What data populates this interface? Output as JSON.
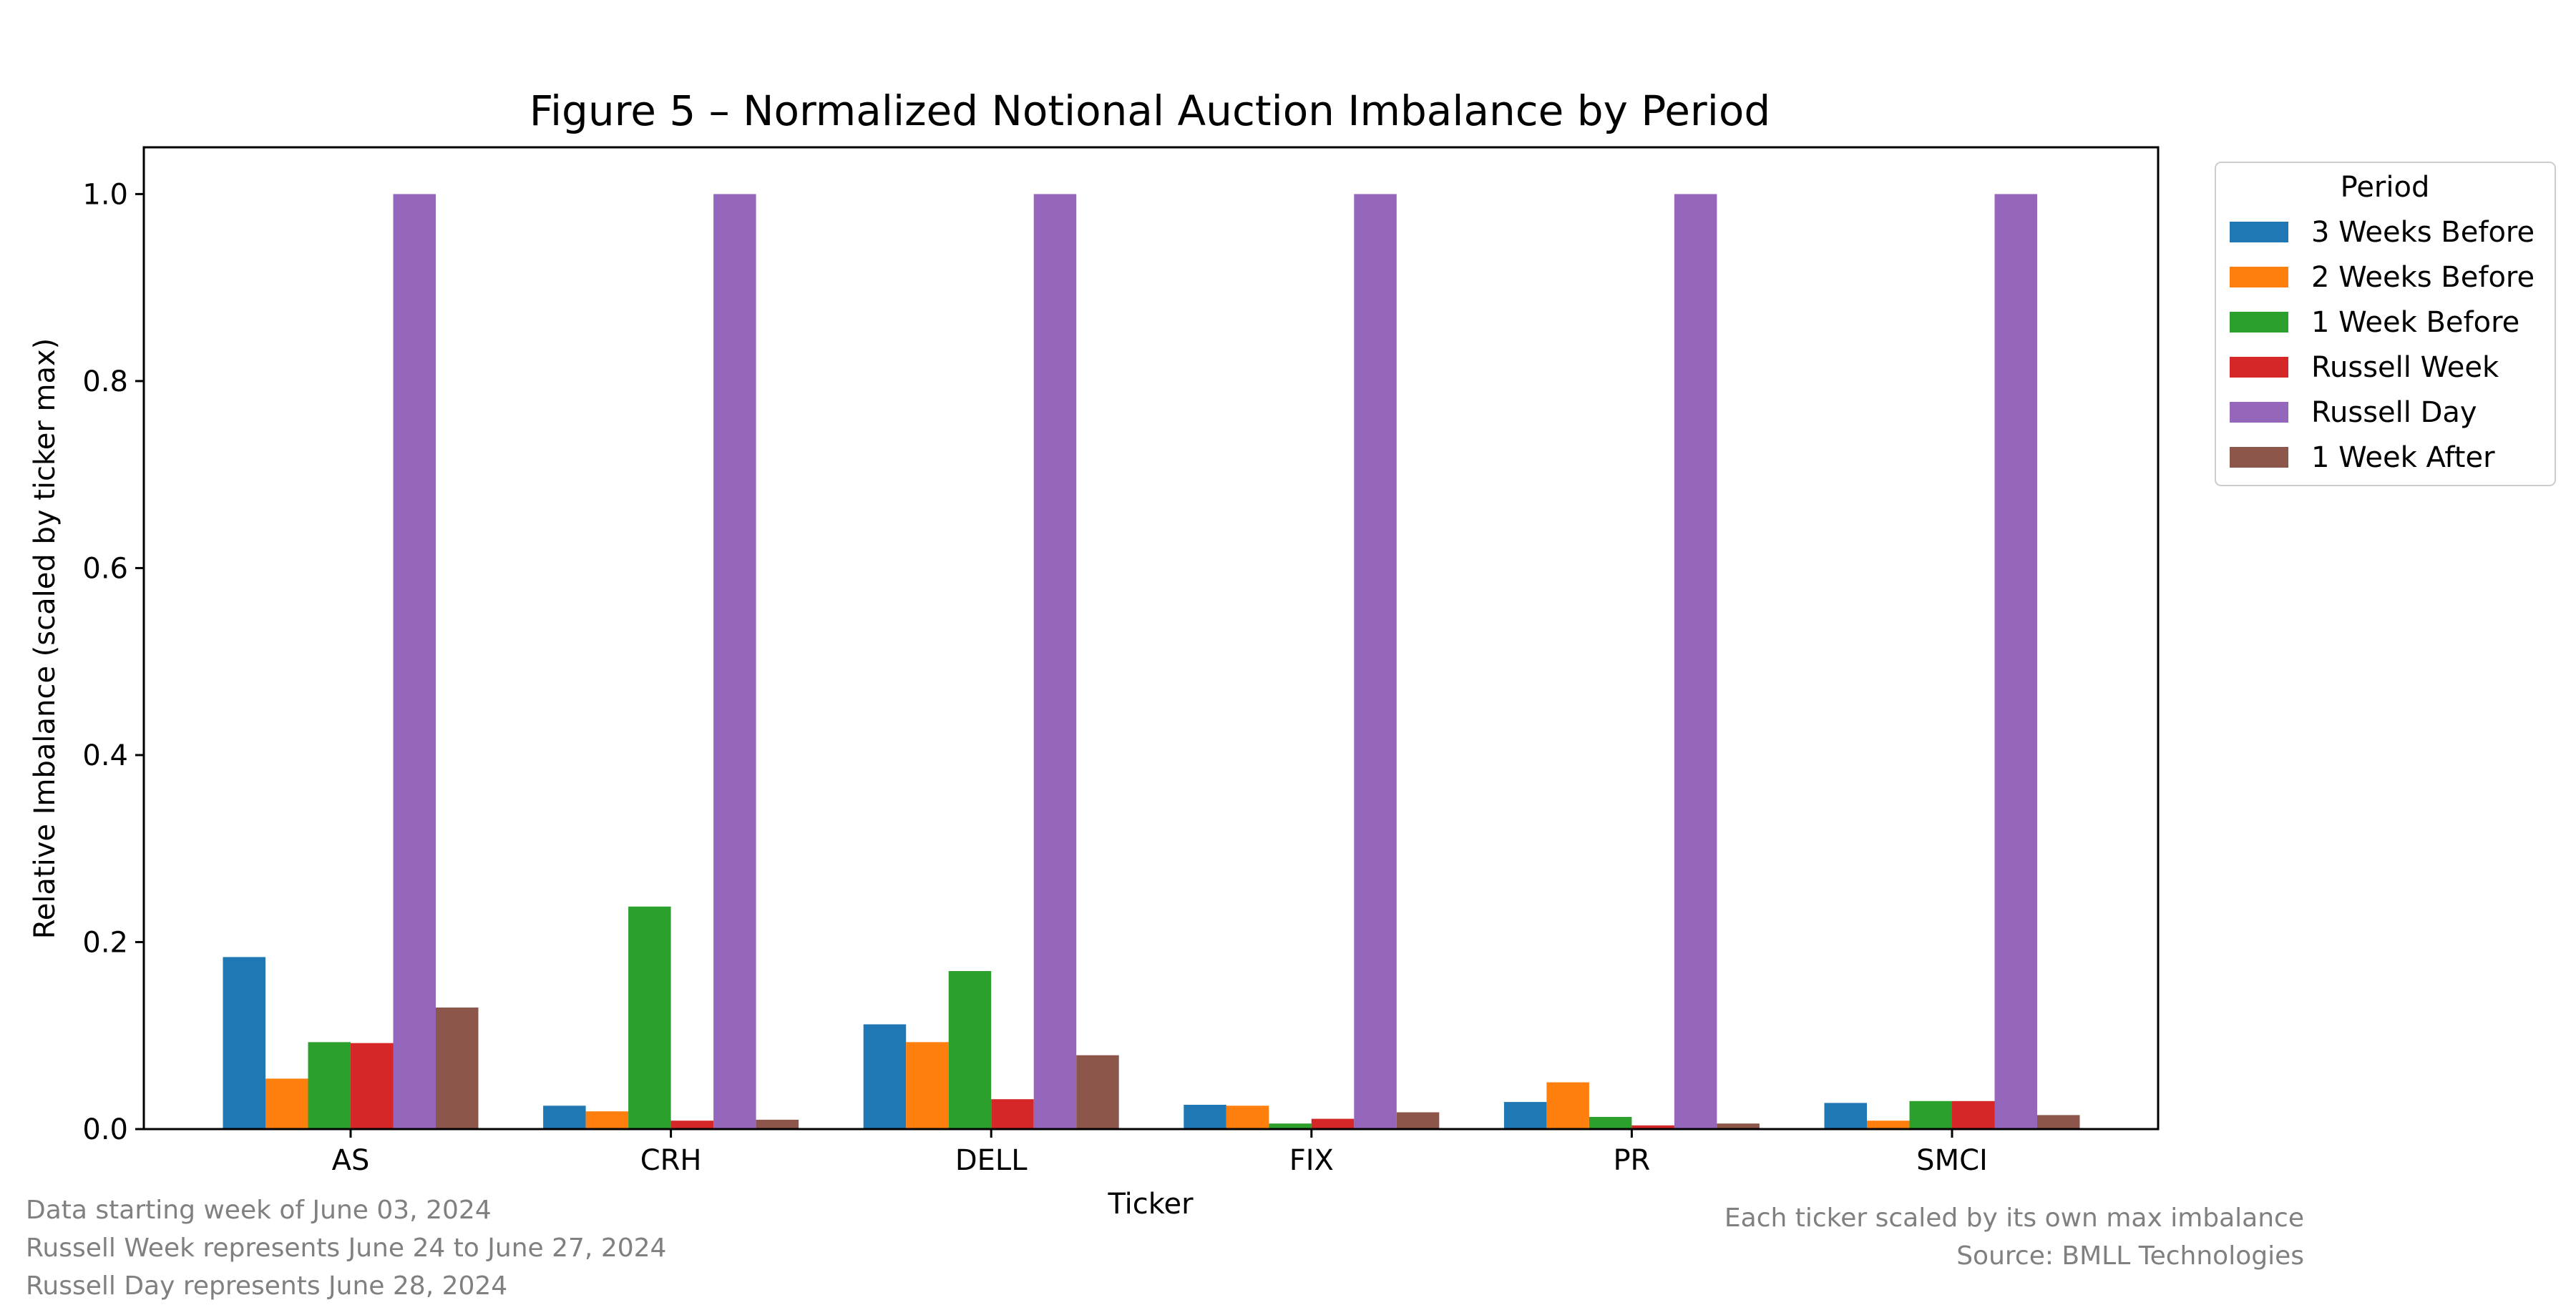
{
  "chart_data": {
    "type": "bar",
    "title": "Figure 5 – Normalized Notional Auction Imbalance by Period",
    "xlabel": "Ticker",
    "ylabel": "Relative Imbalance (scaled by ticker max)",
    "ylim": [
      0,
      1.05
    ],
    "yticks": [
      "0.0",
      "0.2",
      "0.4",
      "0.6",
      "0.8",
      "1.0"
    ],
    "grid": false,
    "categories": [
      "AS",
      "CRH",
      "DELL",
      "FIX",
      "PR",
      "SMCI"
    ],
    "legend": {
      "title": "Period",
      "placement": "outside-top-right"
    },
    "series": [
      {
        "name": "3 Weeks Before",
        "color": "#1f77b4",
        "values": [
          0.184,
          0.025,
          0.112,
          0.026,
          0.029,
          0.028
        ]
      },
      {
        "name": "2 Weeks Before",
        "color": "#ff7f0e",
        "values": [
          0.054,
          0.019,
          0.093,
          0.025,
          0.05,
          0.009
        ]
      },
      {
        "name": "1 Week Before",
        "color": "#2ca02c",
        "values": [
          0.093,
          0.238,
          0.169,
          0.006,
          0.013,
          0.03
        ]
      },
      {
        "name": "Russell Week",
        "color": "#d62728",
        "values": [
          0.092,
          0.009,
          0.032,
          0.011,
          0.004,
          0.03
        ]
      },
      {
        "name": "Russell Day",
        "color": "#9467bd",
        "values": [
          1.0,
          1.0,
          1.0,
          1.0,
          1.0,
          1.0
        ]
      },
      {
        "name": "1 Week After",
        "color": "#8c564b",
        "values": [
          0.13,
          0.01,
          0.079,
          0.018,
          0.006,
          0.015
        ]
      }
    ]
  },
  "notes": {
    "left": [
      "Data starting week of June 03, 2024",
      "Russell Week represents June 24 to June 27, 2024",
      "Russell Day represents June 28, 2024"
    ],
    "right": [
      "Each ticker scaled by its own max imbalance",
      "Source: BMLL Technologies"
    ]
  }
}
